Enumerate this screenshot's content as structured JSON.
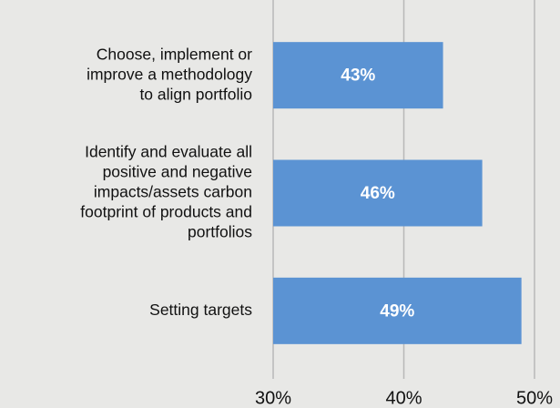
{
  "chart_data": {
    "type": "hbar",
    "categories": [
      [
        "Choose, implement or",
        "improve a methodology",
        "to align portfolio"
      ],
      [
        "Identify and evaluate all",
        "positive and negative",
        "impacts/assets carbon",
        "footprint of products and",
        "portfolios"
      ],
      [
        "Setting targets"
      ]
    ],
    "values": [
      43,
      46,
      49
    ],
    "value_labels": [
      "43%",
      "46%",
      "49%"
    ],
    "color": "#5b93d3",
    "xlim": [
      30,
      50
    ],
    "xticks": [
      {
        "value": 30,
        "label": "30%"
      },
      {
        "value": 40,
        "label": "40%"
      },
      {
        "value": 50,
        "label": "50%"
      }
    ],
    "grid": true
  }
}
